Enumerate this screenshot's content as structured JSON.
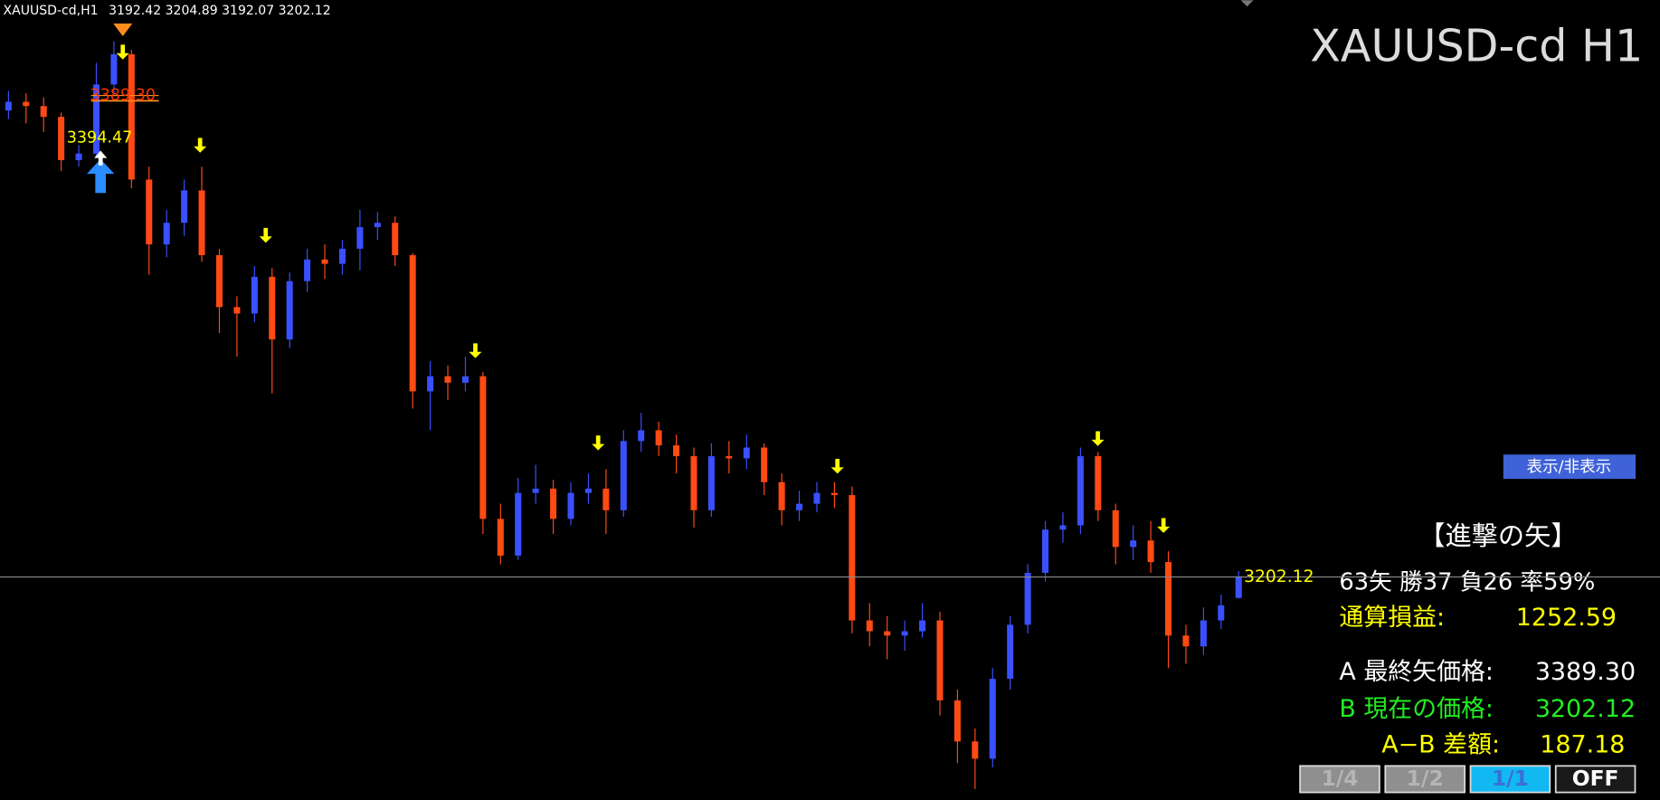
{
  "chart_data": {
    "type": "candlestick",
    "symbol_header": "XAUUSD-cd,H1",
    "ohlc_header": [
      3192.42,
      3204.89,
      3192.07,
      3202.12
    ],
    "title": "XAUUSD-cd H1",
    "ylim": [
      3099,
      3469
    ],
    "up_color": "#3a50ff",
    "down_color": "#ff4a14",
    "current_price": 3202.12,
    "price_label": "3202.12",
    "annotations": [
      "3389.30",
      "3394.47"
    ],
    "candles": [
      [
        3418,
        3427,
        3414,
        3422
      ],
      [
        3422,
        3426,
        3412,
        3420
      ],
      [
        3420,
        3424,
        3408,
        3415
      ],
      [
        3415,
        3417,
        3390,
        3395
      ],
      [
        3395,
        3402,
        3392,
        3398
      ],
      [
        3398,
        3440,
        3396,
        3430
      ],
      [
        3430,
        3450,
        3426,
        3444
      ],
      [
        3444,
        3446,
        3382,
        3386
      ],
      [
        3386,
        3392,
        3342,
        3356
      ],
      [
        3356,
        3372,
        3350,
        3366
      ],
      [
        3366,
        3386,
        3360,
        3381
      ],
      [
        3381,
        3392,
        3348,
        3351
      ],
      [
        3351,
        3354,
        3315,
        3327
      ],
      [
        3327,
        3332,
        3304,
        3324
      ],
      [
        3324,
        3346,
        3320,
        3341
      ],
      [
        3341,
        3345,
        3287,
        3312
      ],
      [
        3312,
        3343,
        3308,
        3339
      ],
      [
        3339,
        3354,
        3334,
        3349
      ],
      [
        3349,
        3356,
        3340,
        3347
      ],
      [
        3347,
        3358,
        3342,
        3354
      ],
      [
        3354,
        3372,
        3344,
        3364
      ],
      [
        3364,
        3371,
        3358,
        3366
      ],
      [
        3366,
        3369,
        3346,
        3351
      ],
      [
        3351,
        3352,
        3280,
        3288
      ],
      [
        3288,
        3302,
        3270,
        3295
      ],
      [
        3295,
        3300,
        3284,
        3292
      ],
      [
        3292,
        3304,
        3288,
        3295
      ],
      [
        3295,
        3297,
        3222,
        3229
      ],
      [
        3229,
        3236,
        3208,
        3212
      ],
      [
        3212,
        3248,
        3210,
        3241
      ],
      [
        3241,
        3254,
        3236,
        3243
      ],
      [
        3243,
        3247,
        3222,
        3229
      ],
      [
        3229,
        3246,
        3226,
        3241
      ],
      [
        3241,
        3250,
        3236,
        3243
      ],
      [
        3243,
        3252,
        3222,
        3233
      ],
      [
        3233,
        3270,
        3230,
        3265
      ],
      [
        3265,
        3278,
        3260,
        3270
      ],
      [
        3270,
        3274,
        3258,
        3263
      ],
      [
        3263,
        3268,
        3250,
        3258
      ],
      [
        3258,
        3262,
        3225,
        3233
      ],
      [
        3233,
        3264,
        3230,
        3258
      ],
      [
        3258,
        3265,
        3250,
        3257
      ],
      [
        3257,
        3268,
        3252,
        3262
      ],
      [
        3262,
        3264,
        3240,
        3246
      ],
      [
        3246,
        3250,
        3226,
        3233
      ],
      [
        3233,
        3242,
        3228,
        3236
      ],
      [
        3236,
        3246,
        3232,
        3241
      ],
      [
        3241,
        3246,
        3234,
        3240
      ],
      [
        3240,
        3244,
        3176,
        3182
      ],
      [
        3182,
        3190,
        3170,
        3177
      ],
      [
        3177,
        3184,
        3164,
        3175
      ],
      [
        3175,
        3182,
        3168,
        3177
      ],
      [
        3177,
        3190,
        3174,
        3182
      ],
      [
        3182,
        3186,
        3138,
        3145
      ],
      [
        3145,
        3150,
        3116,
        3126
      ],
      [
        3126,
        3132,
        3104,
        3118
      ],
      [
        3118,
        3160,
        3114,
        3155
      ],
      [
        3155,
        3184,
        3150,
        3180
      ],
      [
        3180,
        3208,
        3176,
        3204
      ],
      [
        3204,
        3228,
        3200,
        3224
      ],
      [
        3224,
        3232,
        3218,
        3226
      ],
      [
        3226,
        3262,
        3222,
        3258
      ],
      [
        3258,
        3260,
        3228,
        3233
      ],
      [
        3233,
        3236,
        3208,
        3216
      ],
      [
        3216,
        3226,
        3210,
        3219
      ],
      [
        3219,
        3228,
        3204,
        3209
      ],
      [
        3209,
        3214,
        3160,
        3175
      ],
      [
        3175,
        3180,
        3162,
        3170
      ],
      [
        3170,
        3188,
        3166,
        3182
      ],
      [
        3182,
        3194,
        3178,
        3189
      ],
      [
        3192.42,
        3204.89,
        3192.07,
        3202.12
      ]
    ]
  },
  "panel": {
    "toggle_button": "表示/非表示",
    "heading": "【進撃の矢】",
    "stats": "63矢 勝37 負26 率59%",
    "profit_label": "通算損益:",
    "profit_value": "1252.59",
    "last_arrow_label": "A 最終矢価格:",
    "last_arrow_value": "3389.30",
    "current_label": "B 現在の価格:",
    "current_value": "3202.12",
    "diff_label": "A−B 差額:",
    "diff_value": "187.18",
    "scale_buttons": [
      "1/4",
      "1/2",
      "1/1",
      "OFF"
    ]
  }
}
